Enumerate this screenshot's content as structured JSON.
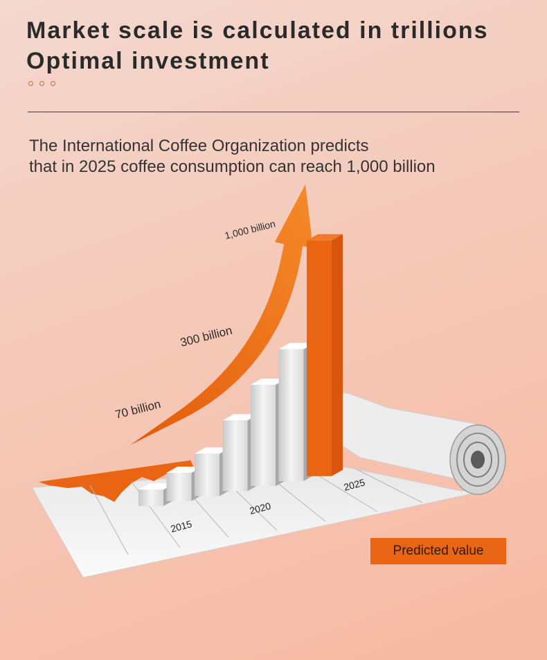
{
  "header": {
    "title_line1": "Market scale is calculated in trillions",
    "title_line2": "Optimal investment",
    "subtitle_line1": "The International Coffee Organization predicts",
    "subtitle_line2": "that in 2025 coffee consumption can reach 1,000 billion"
  },
  "legend": {
    "predicted_label": "Predicted value"
  },
  "colors": {
    "accent": "#ea6513",
    "bar_white": "#f2f2f2",
    "bar_predicted": "#ea6513",
    "text": "#2a2a2a"
  },
  "chart_data": {
    "type": "bar",
    "categories": [
      "",
      "",
      "",
      "",
      "",
      "",
      ""
    ],
    "values": [
      70,
      120,
      180,
      300,
      430,
      560,
      1000
    ],
    "predicted_index": 6,
    "x_tick_labels": [
      "2015",
      "2020",
      "2025"
    ],
    "arrow_annotations": [
      "70 billion",
      "300 billion",
      "1,000 billion"
    ],
    "legend": [
      "Predicted value"
    ]
  }
}
